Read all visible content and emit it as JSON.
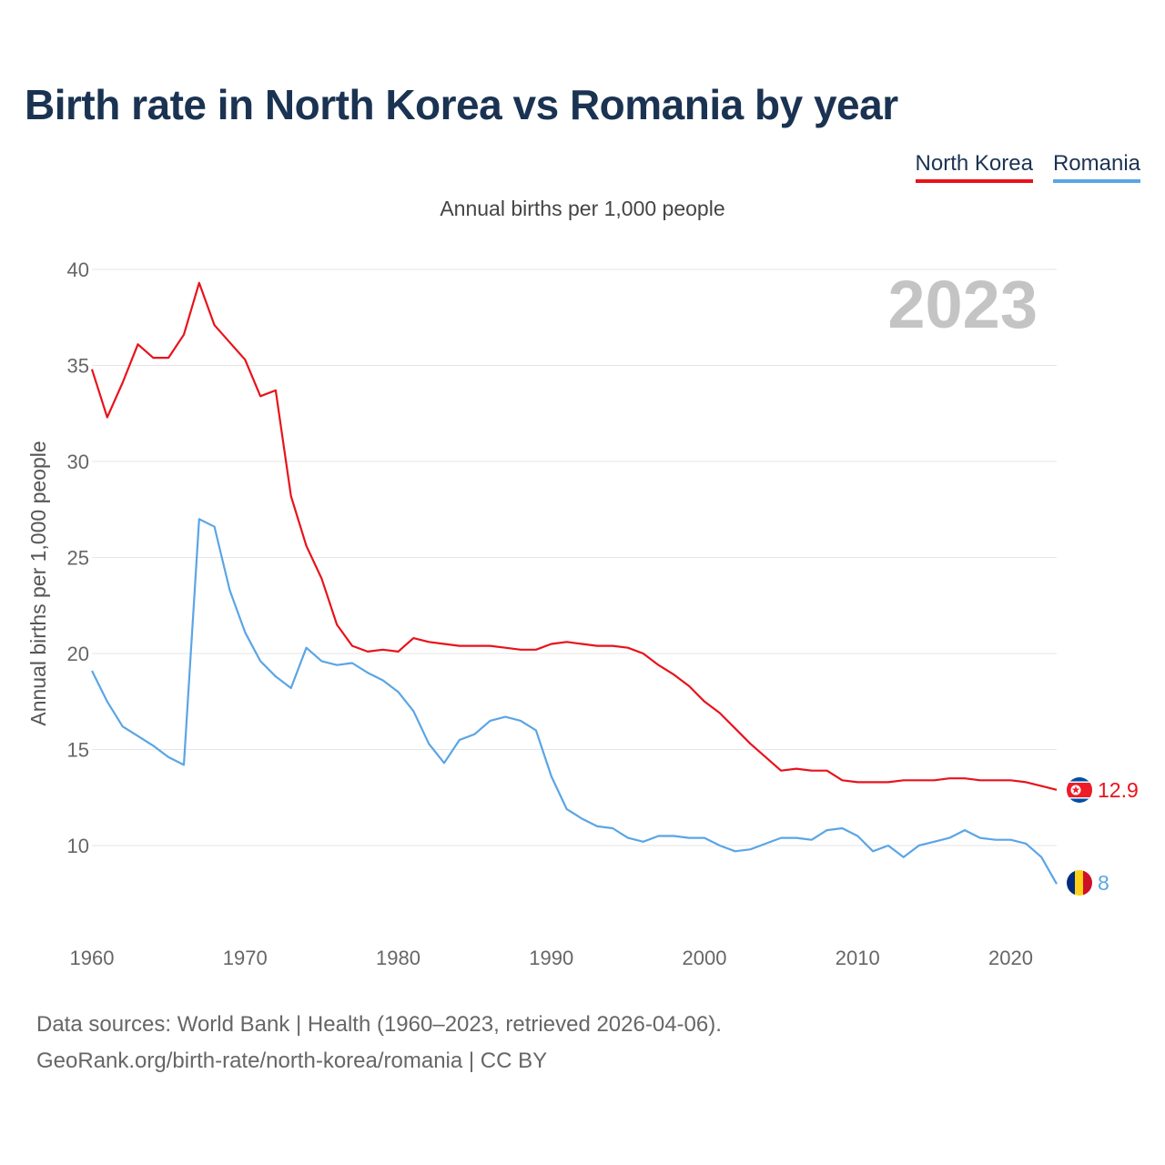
{
  "title": "Birth rate in North Korea vs Romania by year",
  "subtitle": "Annual births per 1,000 people",
  "watermark_year": "2023",
  "source_line1": "Data sources: World Bank | Health (1960–2023, retrieved 2026-04-06).",
  "source_line2": "GeoRank.org/birth-rate/north-korea/romania | CC BY",
  "legend": [
    {
      "label": "North Korea",
      "color": "#e8121b"
    },
    {
      "label": "Romania",
      "color": "#5aa5e6"
    }
  ],
  "chart_data": {
    "type": "line",
    "title": "Birth rate in North Korea vs Romania by year",
    "ylabel": "Annual births per 1,000 people",
    "xlabel": "",
    "xlim": [
      1960,
      2023
    ],
    "ylim": [
      6,
      40
    ],
    "yticks": [
      10,
      15,
      20,
      25,
      30,
      35,
      40
    ],
    "xticks": [
      1960,
      1970,
      1980,
      1990,
      2000,
      2010,
      2020
    ],
    "grid": true,
    "x": [
      1960,
      1961,
      1962,
      1963,
      1964,
      1965,
      1966,
      1967,
      1968,
      1969,
      1970,
      1971,
      1972,
      1973,
      1974,
      1975,
      1976,
      1977,
      1978,
      1979,
      1980,
      1981,
      1982,
      1983,
      1984,
      1985,
      1986,
      1987,
      1988,
      1989,
      1990,
      1991,
      1992,
      1993,
      1994,
      1995,
      1996,
      1997,
      1998,
      1999,
      2000,
      2001,
      2002,
      2003,
      2004,
      2005,
      2006,
      2007,
      2008,
      2009,
      2010,
      2011,
      2012,
      2013,
      2014,
      2015,
      2016,
      2017,
      2018,
      2019,
      2020,
      2021,
      2022,
      2023
    ],
    "series": [
      {
        "name": "North Korea",
        "color": "#e8121b",
        "end_label": "12.9",
        "values": [
          34.8,
          32.3,
          34.1,
          36.1,
          35.4,
          35.4,
          36.6,
          39.3,
          37.1,
          36.2,
          35.3,
          33.4,
          33.7,
          28.2,
          25.6,
          23.9,
          21.5,
          20.4,
          20.1,
          20.2,
          20.1,
          20.8,
          20.6,
          20.5,
          20.4,
          20.4,
          20.4,
          20.3,
          20.2,
          20.2,
          20.5,
          20.6,
          20.5,
          20.4,
          20.4,
          20.3,
          20.0,
          19.4,
          18.9,
          18.3,
          17.5,
          16.9,
          16.1,
          15.3,
          14.6,
          13.9,
          14.0,
          13.9,
          13.9,
          13.4,
          13.3,
          13.3,
          13.3,
          13.4,
          13.4,
          13.4,
          13.5,
          13.5,
          13.4,
          13.4,
          13.4,
          13.3,
          13.1,
          12.9
        ]
      },
      {
        "name": "Romania",
        "color": "#5aa5e6",
        "end_label": "8",
        "values": [
          19.1,
          17.5,
          16.2,
          15.7,
          15.2,
          14.6,
          14.2,
          27.0,
          26.6,
          23.3,
          21.1,
          19.6,
          18.8,
          18.2,
          20.3,
          19.6,
          19.4,
          19.5,
          19.0,
          18.6,
          18.0,
          17.0,
          15.3,
          14.3,
          15.5,
          15.8,
          16.5,
          16.7,
          16.5,
          16.0,
          13.6,
          11.9,
          11.4,
          11.0,
          10.9,
          10.4,
          10.2,
          10.5,
          10.5,
          10.4,
          10.4,
          10.0,
          9.7,
          9.8,
          10.1,
          10.4,
          10.4,
          10.3,
          10.8,
          10.9,
          10.5,
          9.7,
          10.0,
          9.4,
          10.0,
          10.2,
          10.4,
          10.8,
          10.4,
          10.3,
          10.3,
          10.1,
          9.4,
          8.0
        ]
      }
    ]
  }
}
